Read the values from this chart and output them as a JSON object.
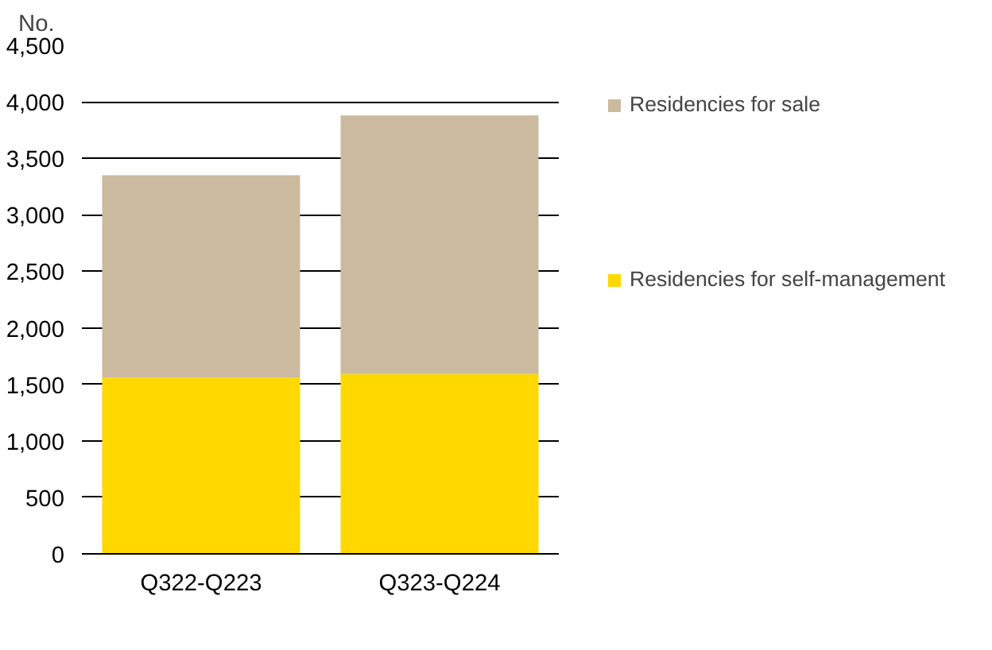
{
  "chart_data": {
    "type": "bar",
    "stacked": true,
    "ylabel": "No.",
    "categories": [
      "Q322-Q223",
      "Q323-Q224"
    ],
    "series": [
      {
        "name": "Residencies for self-management",
        "color": "#ffd800",
        "values": [
          1560,
          1590
        ]
      },
      {
        "name": "Residencies for sale",
        "color": "#cbbaa0",
        "values": [
          1790,
          2290
        ]
      }
    ],
    "ylim": [
      0,
      4500
    ],
    "yticks": [
      {
        "value": 0,
        "label": "0"
      },
      {
        "value": 500,
        "label": "500"
      },
      {
        "value": 1000,
        "label": "1,000"
      },
      {
        "value": 1500,
        "label": "1,500"
      },
      {
        "value": 2000,
        "label": "2,000"
      },
      {
        "value": 2500,
        "label": "2,500"
      },
      {
        "value": 3000,
        "label": "3,000"
      },
      {
        "value": 3500,
        "label": "3,500"
      },
      {
        "value": 4000,
        "label": "4,000"
      },
      {
        "value": 4500,
        "label": "4,500"
      }
    ],
    "grid": "y",
    "legend": "right"
  }
}
